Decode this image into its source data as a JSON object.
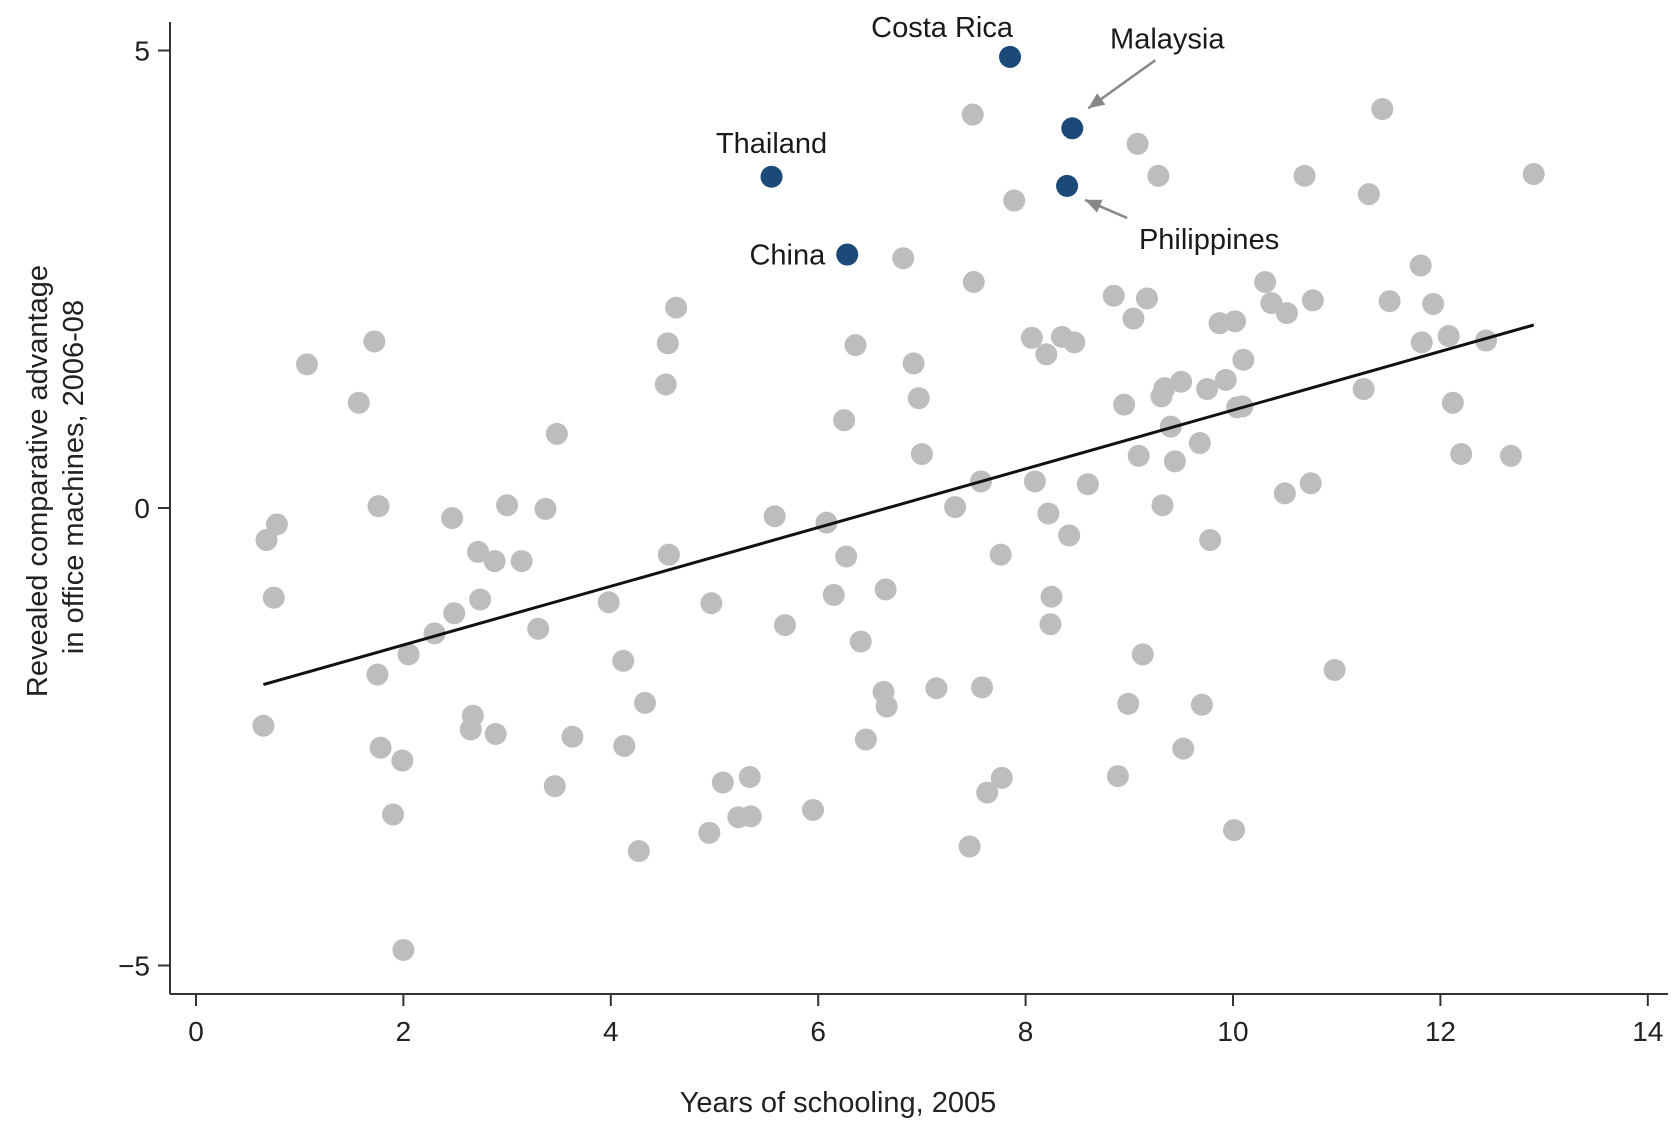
{
  "chart_data": {
    "type": "scatter",
    "title": "",
    "xlabel": "Years of schooling, 2005",
    "ylabel_lines": [
      "Revealed comparative advantage",
      "in office machines, 2006-08"
    ],
    "xlim": [
      -0.25,
      14.25
    ],
    "ylim": [
      -5.3,
      5.3
    ],
    "x_ticks": [
      0,
      2,
      4,
      6,
      8,
      10,
      12,
      14
    ],
    "x_tick_labels": [
      "0",
      "2",
      "4",
      "6",
      "8",
      "10",
      "12",
      "14"
    ],
    "y_ticks": [
      5,
      0,
      -5
    ],
    "y_tick_labels": [
      "5",
      "0",
      "−5"
    ],
    "grid": false,
    "trendline": {
      "x": [
        0.65,
        12.9
      ],
      "y": [
        -1.93,
        2.0
      ]
    },
    "colors": {
      "points": "#bdbdbd",
      "highlight": "#1b4a78",
      "line": "#111111",
      "axis": "#333333",
      "arrow": "#888888"
    },
    "highlighted": [
      {
        "label": "Costa Rica",
        "x": 7.85,
        "y": 4.93
      },
      {
        "label": "Malaysia",
        "x": 8.45,
        "y": 4.15
      },
      {
        "label": "Thailand",
        "x": 5.55,
        "y": 3.62
      },
      {
        "label": "Philippines",
        "x": 8.4,
        "y": 3.52
      },
      {
        "label": "China",
        "x": 6.28,
        "y": 2.77
      }
    ],
    "points": [
      [
        0.65,
        -2.38
      ],
      [
        0.68,
        -0.35
      ],
      [
        0.75,
        -0.98
      ],
      [
        0.78,
        -0.18
      ],
      [
        1.07,
        1.57
      ],
      [
        1.57,
        1.15
      ],
      [
        1.72,
        1.82
      ],
      [
        1.75,
        -1.82
      ],
      [
        1.76,
        0.02
      ],
      [
        1.78,
        -2.62
      ],
      [
        1.9,
        -3.35
      ],
      [
        1.99,
        -2.76
      ],
      [
        2.0,
        -4.83
      ],
      [
        2.05,
        -1.6
      ],
      [
        2.3,
        -1.37
      ],
      [
        2.47,
        -0.11
      ],
      [
        2.49,
        -1.15
      ],
      [
        2.65,
        -2.42
      ],
      [
        2.67,
        -2.27
      ],
      [
        2.72,
        -0.48
      ],
      [
        2.74,
        -1.0
      ],
      [
        2.88,
        -0.58
      ],
      [
        2.89,
        -2.47
      ],
      [
        3.0,
        0.03
      ],
      [
        3.14,
        -0.58
      ],
      [
        3.3,
        -1.32
      ],
      [
        3.37,
        -0.01
      ],
      [
        3.46,
        -3.04
      ],
      [
        3.48,
        0.81
      ],
      [
        3.63,
        -2.5
      ],
      [
        3.98,
        -1.03
      ],
      [
        4.12,
        -1.67
      ],
      [
        4.13,
        -2.6
      ],
      [
        4.27,
        -3.75
      ],
      [
        4.33,
        -2.13
      ],
      [
        4.53,
        1.35
      ],
      [
        4.55,
        1.8
      ],
      [
        4.56,
        -0.51
      ],
      [
        4.63,
        2.19
      ],
      [
        4.95,
        -3.55
      ],
      [
        4.97,
        -1.04
      ],
      [
        5.08,
        -3.0
      ],
      [
        5.23,
        -3.38
      ],
      [
        5.34,
        -2.94
      ],
      [
        5.35,
        -3.37
      ],
      [
        5.58,
        -0.09
      ],
      [
        5.68,
        -1.28
      ],
      [
        5.95,
        -3.3
      ],
      [
        6.08,
        -0.16
      ],
      [
        6.15,
        -0.95
      ],
      [
        6.25,
        0.96
      ],
      [
        6.27,
        -0.53
      ],
      [
        6.36,
        1.78
      ],
      [
        6.41,
        -1.46
      ],
      [
        6.46,
        -2.53
      ],
      [
        6.63,
        -2.01
      ],
      [
        6.65,
        -0.89
      ],
      [
        6.66,
        -2.17
      ],
      [
        6.82,
        2.73
      ],
      [
        6.92,
        1.58
      ],
      [
        6.97,
        1.2
      ],
      [
        7.0,
        0.59
      ],
      [
        7.14,
        -1.97
      ],
      [
        7.32,
        0.01
      ],
      [
        7.46,
        -3.7
      ],
      [
        7.49,
        4.3
      ],
      [
        7.5,
        2.47
      ],
      [
        7.57,
        0.29
      ],
      [
        7.58,
        -1.96
      ],
      [
        7.63,
        -3.11
      ],
      [
        7.76,
        -0.51
      ],
      [
        7.77,
        -2.95
      ],
      [
        7.89,
        3.36
      ],
      [
        8.06,
        1.86
      ],
      [
        8.09,
        0.29
      ],
      [
        8.2,
        1.68
      ],
      [
        8.22,
        -0.06
      ],
      [
        8.24,
        -1.27
      ],
      [
        8.25,
        -0.97
      ],
      [
        8.35,
        1.87
      ],
      [
        8.42,
        -0.3
      ],
      [
        8.47,
        1.81
      ],
      [
        8.6,
        0.26
      ],
      [
        8.85,
        2.32
      ],
      [
        8.89,
        -2.93
      ],
      [
        8.95,
        1.13
      ],
      [
        8.99,
        -2.14
      ],
      [
        9.04,
        2.07
      ],
      [
        9.08,
        3.98
      ],
      [
        9.09,
        0.57
      ],
      [
        9.13,
        -1.6
      ],
      [
        9.17,
        2.29
      ],
      [
        9.28,
        3.63
      ],
      [
        9.31,
        1.22
      ],
      [
        9.32,
        0.03
      ],
      [
        9.34,
        1.31
      ],
      [
        9.4,
        0.89
      ],
      [
        9.44,
        0.51
      ],
      [
        9.5,
        1.38
      ],
      [
        9.52,
        -2.63
      ],
      [
        9.68,
        0.71
      ],
      [
        9.7,
        -2.15
      ],
      [
        9.75,
        1.3
      ],
      [
        9.78,
        -0.35
      ],
      [
        9.87,
        2.02
      ],
      [
        9.93,
        1.4
      ],
      [
        10.01,
        -3.52
      ],
      [
        10.02,
        2.04
      ],
      [
        10.04,
        1.1
      ],
      [
        10.09,
        1.11
      ],
      [
        10.1,
        1.62
      ],
      [
        10.31,
        2.47
      ],
      [
        10.37,
        2.24
      ],
      [
        10.5,
        0.16
      ],
      [
        10.52,
        2.13
      ],
      [
        10.69,
        3.63
      ],
      [
        10.75,
        0.27
      ],
      [
        10.77,
        2.27
      ],
      [
        10.98,
        -1.77
      ],
      [
        11.26,
        1.3
      ],
      [
        11.31,
        3.43
      ],
      [
        11.44,
        4.36
      ],
      [
        11.51,
        2.26
      ],
      [
        11.81,
        2.65
      ],
      [
        11.82,
        1.81
      ],
      [
        11.93,
        2.23
      ],
      [
        12.08,
        1.88
      ],
      [
        12.12,
        1.15
      ],
      [
        12.2,
        0.59
      ],
      [
        12.44,
        1.83
      ],
      [
        12.68,
        0.57
      ],
      [
        12.9,
        3.65
      ]
    ]
  }
}
